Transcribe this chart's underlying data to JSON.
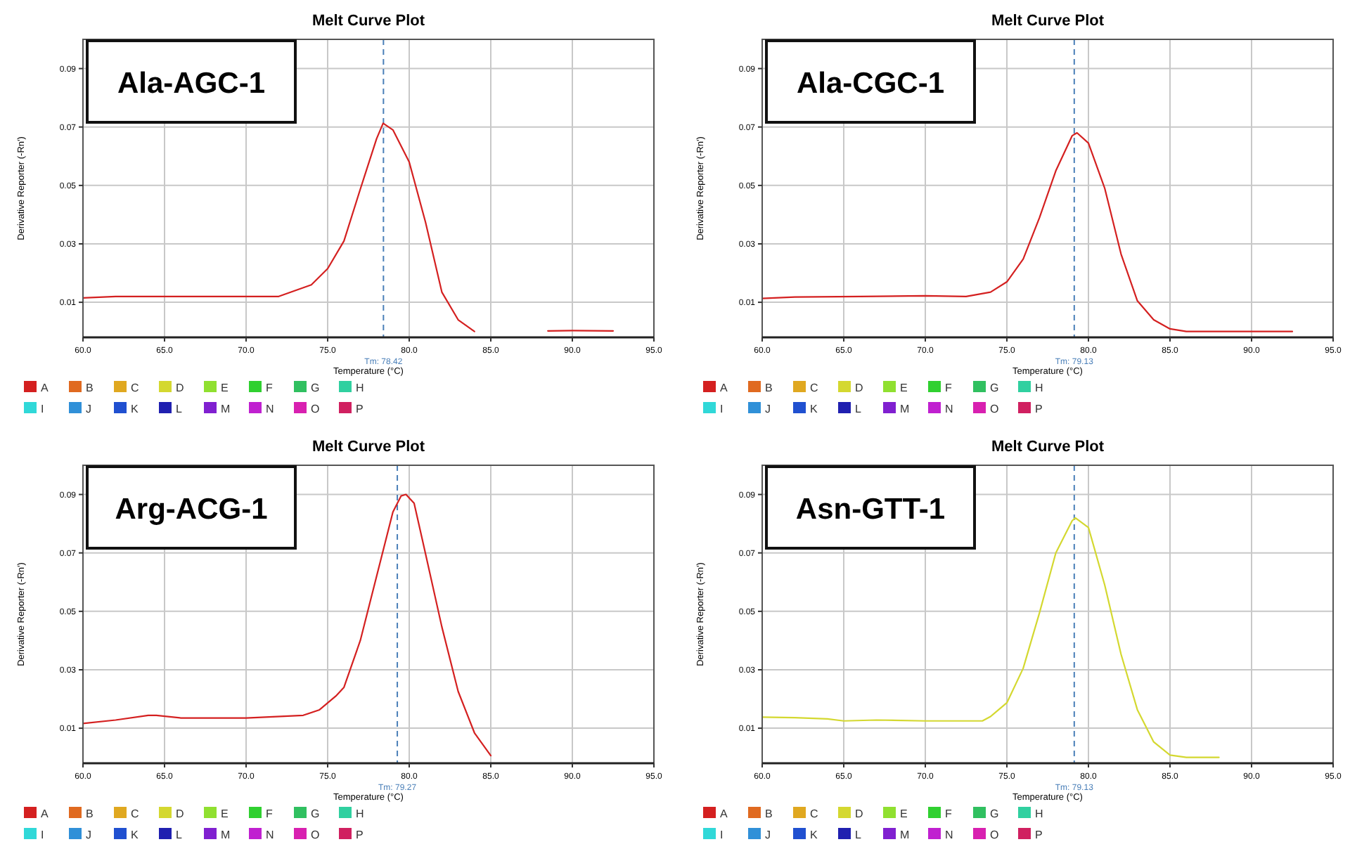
{
  "chart_data": [
    {
      "type": "line",
      "title": "Melt Curve Plot",
      "xlabel": "Temperature (°C)",
      "ylabel": "Derivative Reporter (-Rn')",
      "xlim": [
        60,
        95
      ],
      "ylim": [
        -0.002,
        0.1
      ],
      "xticks": [
        {
          "value": 60,
          "label": "60.0"
        },
        {
          "value": 65,
          "label": "65.0"
        },
        {
          "value": 70,
          "label": "70.0"
        },
        {
          "value": 75,
          "label": "75.0"
        },
        {
          "value": 80,
          "label": "80.0"
        },
        {
          "value": 85,
          "label": "85.0"
        },
        {
          "value": 90,
          "label": "90.0"
        },
        {
          "value": 95,
          "label": "95.0"
        }
      ],
      "yticks": [
        0.01,
        0.03,
        0.05,
        0.07,
        0.09
      ],
      "grid": true,
      "legend": "bottom left",
      "annotations": [
        "Ala-AGC-1"
      ],
      "ref_lines": [
        {
          "axis": "x",
          "value": 78.42,
          "label": "Tm: 78.42",
          "color": "#4a7fb8",
          "line_style": "dashed"
        }
      ],
      "series": [
        {
          "name": "A",
          "color": "#d42020",
          "x": [
            60,
            62,
            72,
            74,
            75,
            76,
            77,
            78,
            78.4,
            79,
            80,
            81,
            82,
            83,
            84,
            86,
            88.5,
            90,
            92.5
          ],
          "values": [
            0.0115,
            0.012,
            0.012,
            0.016,
            0.0215,
            0.031,
            0.0487,
            0.066,
            0.0713,
            0.069,
            0.058,
            0.0374,
            0.0135,
            0.004,
            0,
            null,
            0.0002,
            0.0003,
            0.0002
          ]
        },
        {
          "name": "B",
          "color": "#e06a20"
        },
        {
          "name": "C",
          "color": "#e0a820"
        },
        {
          "name": "D",
          "color": "#d4d830"
        },
        {
          "name": "E",
          "color": "#90e030"
        },
        {
          "name": "F",
          "color": "#30d030"
        },
        {
          "name": "G",
          "color": "#30c060"
        },
        {
          "name": "H",
          "color": "#30d0a0"
        },
        {
          "name": "I",
          "color": "#30d8d8"
        },
        {
          "name": "J",
          "color": "#3090d8"
        },
        {
          "name": "K",
          "color": "#2050d0"
        },
        {
          "name": "L",
          "color": "#2020b0"
        },
        {
          "name": "M",
          "color": "#8020d0"
        },
        {
          "name": "N",
          "color": "#c020d0"
        },
        {
          "name": "O",
          "color": "#d820b0"
        },
        {
          "name": "P",
          "color": "#d02060"
        }
      ]
    },
    {
      "type": "line",
      "title": "Melt Curve Plot",
      "xlabel": "Temperature (°C)",
      "ylabel": "Derivative Reporter (-Rn')",
      "xlim": [
        60,
        95
      ],
      "ylim": [
        -0.002,
        0.1
      ],
      "xticks": [
        {
          "value": 60,
          "label": "60.0"
        },
        {
          "value": 65,
          "label": "65.0"
        },
        {
          "value": 70,
          "label": "70.0"
        },
        {
          "value": 75,
          "label": "75.0"
        },
        {
          "value": 80,
          "label": "80.0"
        },
        {
          "value": 85,
          "label": "85.0"
        },
        {
          "value": 90,
          "label": "90.0"
        },
        {
          "value": 95,
          "label": "95.0"
        }
      ],
      "yticks": [
        0.01,
        0.03,
        0.05,
        0.07,
        0.09
      ],
      "grid": true,
      "legend": "bottom left",
      "annotations": [
        "Ala-CGC-1"
      ],
      "ref_lines": [
        {
          "axis": "x",
          "value": 79.13,
          "label": "Tm: 79.13",
          "color": "#4a7fb8",
          "line_style": "dashed"
        }
      ],
      "series": [
        {
          "name": "A",
          "color": "#d42020",
          "x": [
            60,
            62,
            66,
            70,
            72.5,
            74,
            75,
            76,
            77,
            78,
            79,
            79.3,
            80,
            81,
            82,
            83,
            84,
            85,
            86,
            88,
            92.5
          ],
          "values": [
            0.0113,
            0.0118,
            0.012,
            0.0122,
            0.012,
            0.0135,
            0.017,
            0.0248,
            0.039,
            0.055,
            0.067,
            0.068,
            0.0645,
            0.049,
            0.0265,
            0.0105,
            0.004,
            0.0009,
            0,
            0,
            0
          ]
        },
        {
          "name": "B",
          "color": "#e06a20"
        },
        {
          "name": "C",
          "color": "#e0a820"
        },
        {
          "name": "D",
          "color": "#d4d830"
        },
        {
          "name": "E",
          "color": "#90e030"
        },
        {
          "name": "F",
          "color": "#30d030"
        },
        {
          "name": "G",
          "color": "#30c060"
        },
        {
          "name": "H",
          "color": "#30d0a0"
        },
        {
          "name": "I",
          "color": "#30d8d8"
        },
        {
          "name": "J",
          "color": "#3090d8"
        },
        {
          "name": "K",
          "color": "#2050d0"
        },
        {
          "name": "L",
          "color": "#2020b0"
        },
        {
          "name": "M",
          "color": "#8020d0"
        },
        {
          "name": "N",
          "color": "#c020d0"
        },
        {
          "name": "O",
          "color": "#d820b0"
        },
        {
          "name": "P",
          "color": "#d02060"
        }
      ]
    },
    {
      "type": "line",
      "title": "Melt Curve Plot",
      "xlabel": "Temperature (°C)",
      "ylabel": "Derivative Reporter (-Rn')",
      "xlim": [
        60,
        95
      ],
      "ylim": [
        -0.002,
        0.1
      ],
      "xticks": [
        {
          "value": 60,
          "label": "60.0"
        },
        {
          "value": 65,
          "label": "65.0"
        },
        {
          "value": 70,
          "label": "70.0"
        },
        {
          "value": 75,
          "label": "75.0"
        },
        {
          "value": 80,
          "label": "80.0"
        },
        {
          "value": 85,
          "label": "85.0"
        },
        {
          "value": 90,
          "label": "90.0"
        },
        {
          "value": 95,
          "label": "95.0"
        }
      ],
      "yticks": [
        0.01,
        0.03,
        0.05,
        0.07,
        0.09
      ],
      "grid": true,
      "legend": "bottom left",
      "annotations": [
        "Arg-ACG-1"
      ],
      "ref_lines": [
        {
          "axis": "x",
          "value": 79.27,
          "label": "Tm: 79.27",
          "color": "#4a7fb8",
          "line_style": "dashed"
        }
      ],
      "series": [
        {
          "name": "A",
          "color": "#d42020",
          "x": [
            60,
            62,
            64,
            64.5,
            66,
            70,
            73.5,
            74.5,
            75.5,
            76,
            77,
            78,
            79,
            79.5,
            79.8,
            80.3,
            81,
            82,
            83,
            84,
            85
          ],
          "values": [
            0.0116,
            0.0128,
            0.0144,
            0.0144,
            0.0135,
            0.0135,
            0.0144,
            0.0163,
            0.021,
            0.024,
            0.04,
            0.062,
            0.084,
            0.0895,
            0.09,
            0.087,
            0.0697,
            0.0447,
            0.0226,
            0.0084,
            0.0006
          ]
        },
        {
          "name": "B",
          "color": "#e06a20"
        },
        {
          "name": "C",
          "color": "#e0a820"
        },
        {
          "name": "D",
          "color": "#d4d830"
        },
        {
          "name": "E",
          "color": "#90e030"
        },
        {
          "name": "F",
          "color": "#30d030"
        },
        {
          "name": "G",
          "color": "#30c060"
        },
        {
          "name": "H",
          "color": "#30d0a0"
        },
        {
          "name": "I",
          "color": "#30d8d8"
        },
        {
          "name": "J",
          "color": "#3090d8"
        },
        {
          "name": "K",
          "color": "#2050d0"
        },
        {
          "name": "L",
          "color": "#2020b0"
        },
        {
          "name": "M",
          "color": "#8020d0"
        },
        {
          "name": "N",
          "color": "#c020d0"
        },
        {
          "name": "O",
          "color": "#d820b0"
        },
        {
          "name": "P",
          "color": "#d02060"
        }
      ]
    },
    {
      "type": "line",
      "title": "Melt Curve Plot",
      "xlabel": "Temperature (°C)",
      "ylabel": "Derivative Reporter (-Rn')",
      "xlim": [
        60,
        95
      ],
      "ylim": [
        -0.002,
        0.1
      ],
      "xticks": [
        {
          "value": 60,
          "label": "60.0"
        },
        {
          "value": 65,
          "label": "65.0"
        },
        {
          "value": 70,
          "label": "70.0"
        },
        {
          "value": 75,
          "label": "75.0"
        },
        {
          "value": 80,
          "label": "80.0"
        },
        {
          "value": 85,
          "label": "85.0"
        },
        {
          "value": 90,
          "label": "90.0"
        },
        {
          "value": 95,
          "label": "95.0"
        }
      ],
      "yticks": [
        0.01,
        0.03,
        0.05,
        0.07,
        0.09
      ],
      "grid": true,
      "legend": "bottom left",
      "annotations": [
        "Asn-GTT-1"
      ],
      "ref_lines": [
        {
          "axis": "x",
          "value": 79.13,
          "label": "Tm: 79.13",
          "color": "#4a7fb8",
          "line_style": "dashed"
        }
      ],
      "series": [
        {
          "name": "A",
          "color": "#d42020"
        },
        {
          "name": "B",
          "color": "#e06a20"
        },
        {
          "name": "C",
          "color": "#e0a820"
        },
        {
          "name": "D",
          "color": "#d4d830",
          "x": [
            60,
            62,
            64,
            65,
            67,
            70,
            73.5,
            74,
            75,
            76,
            77,
            78,
            79,
            79.2,
            80,
            81,
            82,
            83,
            84,
            85,
            86,
            88
          ],
          "values": [
            0.0138,
            0.0136,
            0.0132,
            0.0125,
            0.0128,
            0.0125,
            0.0125,
            0.014,
            0.0187,
            0.0305,
            0.0495,
            0.07,
            0.081,
            0.082,
            0.0787,
            0.059,
            0.0353,
            0.0163,
            0.0053,
            0.0008,
            0,
            0
          ]
        },
        {
          "name": "E",
          "color": "#90e030"
        },
        {
          "name": "F",
          "color": "#30d030"
        },
        {
          "name": "G",
          "color": "#30c060"
        },
        {
          "name": "H",
          "color": "#30d0a0"
        },
        {
          "name": "I",
          "color": "#30d8d8"
        },
        {
          "name": "J",
          "color": "#3090d8"
        },
        {
          "name": "K",
          "color": "#2050d0"
        },
        {
          "name": "L",
          "color": "#2020b0"
        },
        {
          "name": "M",
          "color": "#8020d0"
        },
        {
          "name": "N",
          "color": "#c020d0"
        },
        {
          "name": "O",
          "color": "#d820b0"
        },
        {
          "name": "P",
          "color": "#d02060"
        }
      ]
    }
  ]
}
